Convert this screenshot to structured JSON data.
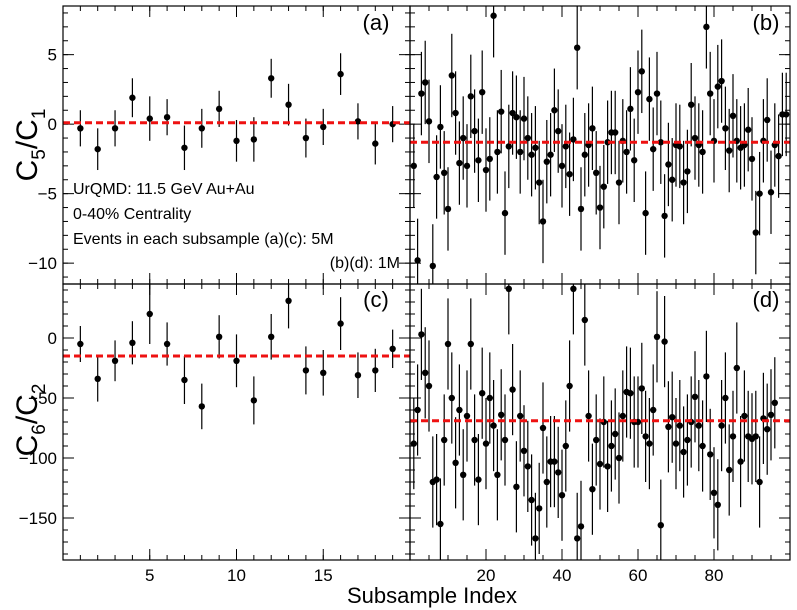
{
  "figure": {
    "x_title": "Subsample Index",
    "y_title_top": {
      "base": "C",
      "num_sub": "5",
      "den_sub": "1"
    },
    "y_title_bottom": {
      "base": "C",
      "num_sub": "6",
      "den_sub": "2"
    },
    "annotations": [
      "UrQMD: 11.5 GeV Au+Au",
      "0-40% Centrality",
      "Events in each subsample (a)(c): 5M",
      "(b)(d): 1M"
    ],
    "colors": {
      "reference_line": "#ee1111",
      "points": "#000000"
    }
  },
  "chart_data": [
    {
      "panel": "(a)",
      "type": "scatter",
      "ylabel": "C5/C1",
      "xlim": [
        0,
        20
      ],
      "ylim": [
        -11.5,
        8.5
      ],
      "x_ticks": [
        5,
        10,
        15
      ],
      "y_ticks": [
        -10,
        -5,
        0,
        5
      ],
      "reference_line": 0.1,
      "points": [
        [
          1,
          -0.3
        ],
        [
          2,
          -1.8
        ],
        [
          3,
          -0.3
        ],
        [
          4,
          1.9
        ],
        [
          5,
          0.4
        ],
        [
          6,
          0.5
        ],
        [
          7,
          -1.7
        ],
        [
          8,
          -0.3
        ],
        [
          9,
          1.1
        ],
        [
          10,
          -1.2
        ],
        [
          11,
          -1.1
        ],
        [
          12,
          3.3
        ],
        [
          13,
          1.4
        ],
        [
          14,
          -1.0
        ],
        [
          15,
          -0.2
        ],
        [
          16,
          3.6
        ],
        [
          17,
          0.2
        ],
        [
          18,
          -1.4
        ],
        [
          19,
          0.0
        ]
      ],
      "errors": [
        1.3,
        1.5,
        1.3,
        1.4,
        1.6,
        1.3,
        1.6,
        1.4,
        1.3,
        1.5,
        1.6,
        1.4,
        1.5,
        1.4,
        1.3,
        1.5,
        1.3,
        1.5,
        1.3
      ]
    },
    {
      "panel": "(b)",
      "type": "scatter",
      "ylabel": "C5/C1",
      "xlim": [
        0,
        100
      ],
      "ylim": [
        -11.5,
        8.5
      ],
      "x_ticks": [
        20,
        40,
        60,
        80
      ],
      "y_ticks": [
        -10,
        -5,
        0,
        5
      ],
      "reference_line": -1.3,
      "points": [
        [
          1,
          -3.0
        ],
        [
          2,
          -9.8
        ],
        [
          3,
          2.2
        ],
        [
          4,
          3.0
        ],
        [
          5,
          0.2
        ],
        [
          6,
          -10.2
        ],
        [
          7,
          -3.8
        ],
        [
          8,
          -0.2
        ],
        [
          9,
          -3.5
        ],
        [
          10,
          -6.1
        ],
        [
          11,
          3.5
        ],
        [
          12,
          0.8
        ],
        [
          13,
          -2.8
        ],
        [
          14,
          -1.0
        ],
        [
          15,
          -3.0
        ],
        [
          16,
          2.0
        ],
        [
          17,
          -0.5
        ],
        [
          18,
          -2.6
        ],
        [
          19,
          2.3
        ],
        [
          20,
          -3.3
        ],
        [
          21,
          -2.5
        ],
        [
          22,
          7.8
        ],
        [
          23,
          -2.0
        ],
        [
          24,
          0.9
        ],
        [
          25,
          -6.4
        ],
        [
          26,
          -1.6
        ],
        [
          27,
          0.8
        ],
        [
          28,
          0.5
        ],
        [
          29,
          -2.0
        ],
        [
          30,
          0.4
        ],
        [
          31,
          -1.0
        ],
        [
          32,
          -2.2
        ],
        [
          33,
          -1.7
        ],
        [
          34,
          -4.2
        ],
        [
          35,
          -7.0
        ],
        [
          36,
          -2.7
        ],
        [
          37,
          -2.2
        ],
        [
          38,
          1.0
        ],
        [
          39,
          -0.5
        ],
        [
          40,
          -3.0
        ],
        [
          41,
          -1.6
        ],
        [
          42,
          -3.6
        ],
        [
          43,
          -1.1
        ],
        [
          44,
          5.5
        ],
        [
          45,
          -6.1
        ],
        [
          46,
          -2.2
        ],
        [
          47,
          -1.5
        ],
        [
          48,
          -0.3
        ],
        [
          49,
          -3.5
        ],
        [
          50,
          -6.0
        ],
        [
          51,
          -4.5
        ],
        [
          52,
          -1.3
        ],
        [
          53,
          -0.6
        ],
        [
          54,
          -0.6
        ],
        [
          55,
          -4.2
        ],
        [
          56,
          -1.2
        ],
        [
          57,
          -2.0
        ],
        [
          58,
          1.1
        ],
        [
          59,
          -2.6
        ],
        [
          60,
          2.3
        ],
        [
          61,
          3.8
        ],
        [
          62,
          -6.4
        ],
        [
          63,
          1.8
        ],
        [
          64,
          -1.8
        ],
        [
          65,
          2.2
        ],
        [
          66,
          -1.3
        ],
        [
          67,
          -6.6
        ],
        [
          68,
          -2.9
        ],
        [
          69,
          -4.0
        ],
        [
          70,
          -1.5
        ],
        [
          71,
          -1.6
        ],
        [
          72,
          -4.2
        ],
        [
          73,
          -3.4
        ],
        [
          74,
          1.4
        ],
        [
          75,
          -1.0
        ],
        [
          76,
          -1.5
        ],
        [
          77,
          -2.0
        ],
        [
          78,
          7.0
        ],
        [
          79,
          2.2
        ],
        [
          80,
          -1.2
        ],
        [
          81,
          2.7
        ],
        [
          82,
          3.1
        ],
        [
          83,
          -0.3
        ],
        [
          84,
          -1.9
        ],
        [
          85,
          0.6
        ],
        [
          86,
          -1.2
        ],
        [
          87,
          -1.7
        ],
        [
          88,
          -1.5
        ],
        [
          89,
          -0.4
        ],
        [
          90,
          -2.5
        ],
        [
          91,
          -7.8
        ],
        [
          92,
          -5.0
        ],
        [
          93,
          -1.2
        ],
        [
          94,
          0.3
        ],
        [
          95,
          -4.9
        ],
        [
          96,
          -1.5
        ],
        [
          97,
          -2.3
        ],
        [
          98,
          0.7
        ],
        [
          99,
          0.7
        ]
      ],
      "error": 3.0
    },
    {
      "panel": "(c)",
      "type": "scatter",
      "ylabel": "C6/C2",
      "xlim": [
        0,
        20
      ],
      "ylim": [
        -185,
        45
      ],
      "x_ticks": [
        5,
        10,
        15
      ],
      "y_ticks": [
        -150,
        -100,
        -50,
        0
      ],
      "reference_line": -15,
      "points": [
        [
          1,
          -5
        ],
        [
          2,
          -34
        ],
        [
          3,
          -19
        ],
        [
          4,
          -4
        ],
        [
          5,
          20
        ],
        [
          6,
          -5
        ],
        [
          7,
          -35
        ],
        [
          8,
          -57
        ],
        [
          9,
          1
        ],
        [
          10,
          -19
        ],
        [
          11,
          -52
        ],
        [
          12,
          1
        ],
        [
          13,
          31
        ],
        [
          14,
          -27
        ],
        [
          15,
          -29
        ],
        [
          16,
          12
        ],
        [
          17,
          -31
        ],
        [
          18,
          -27
        ],
        [
          19,
          -9
        ]
      ],
      "errors": [
        15,
        19,
        17,
        18,
        25,
        18,
        20,
        19,
        18,
        22,
        20,
        19,
        23,
        20,
        19,
        22,
        19,
        18,
        16
      ]
    },
    {
      "panel": "(d)",
      "type": "scatter",
      "ylabel": "C6/C2",
      "xlim": [
        0,
        100
      ],
      "ylim": [
        -185,
        45
      ],
      "x_ticks": [
        20,
        40,
        60,
        80
      ],
      "y_ticks": [
        -150,
        -100,
        -50,
        0
      ],
      "reference_line": -69,
      "points": [
        [
          1,
          -88
        ],
        [
          2,
          -60
        ],
        [
          3,
          3
        ],
        [
          4,
          -29
        ],
        [
          5,
          -40
        ],
        [
          6,
          -120
        ],
        [
          7,
          -118
        ],
        [
          8,
          -155
        ],
        [
          9,
          -85
        ],
        [
          10,
          -5
        ],
        [
          11,
          -50
        ],
        [
          12,
          -104
        ],
        [
          13,
          -60
        ],
        [
          14,
          -114
        ],
        [
          15,
          -65
        ],
        [
          16,
          -5
        ],
        [
          17,
          -85
        ],
        [
          18,
          -118
        ],
        [
          19,
          -46
        ],
        [
          20,
          -88
        ],
        [
          21,
          -50
        ],
        [
          22,
          -73
        ],
        [
          23,
          -114
        ],
        [
          24,
          -64
        ],
        [
          25,
          -85
        ],
        [
          26,
          41
        ],
        [
          27,
          -43
        ],
        [
          28,
          -124
        ],
        [
          29,
          -65
        ],
        [
          30,
          -94
        ],
        [
          31,
          -107
        ],
        [
          32,
          -135
        ],
        [
          33,
          -167
        ],
        [
          34,
          -142
        ],
        [
          35,
          -75
        ],
        [
          36,
          -120
        ],
        [
          37,
          -103
        ],
        [
          38,
          -103
        ],
        [
          39,
          -112
        ],
        [
          40,
          -131
        ],
        [
          41,
          -90
        ],
        [
          42,
          -40
        ],
        [
          43,
          41
        ],
        [
          44,
          -167
        ],
        [
          45,
          -157
        ],
        [
          46,
          15
        ],
        [
          47,
          -65
        ],
        [
          48,
          -126
        ],
        [
          49,
          -85
        ],
        [
          50,
          -105
        ],
        [
          51,
          -70
        ],
        [
          52,
          -107
        ],
        [
          53,
          -90
        ],
        [
          54,
          -80
        ],
        [
          55,
          -100
        ],
        [
          56,
          -65
        ],
        [
          57,
          -45
        ],
        [
          58,
          -46
        ],
        [
          59,
          -70
        ],
        [
          60,
          -70
        ],
        [
          61,
          -42
        ],
        [
          62,
          -82
        ],
        [
          63,
          -88
        ],
        [
          64,
          -60
        ],
        [
          65,
          1
        ],
        [
          66,
          -156
        ],
        [
          67,
          -3
        ],
        [
          68,
          -74
        ],
        [
          69,
          -66
        ],
        [
          70,
          -88
        ],
        [
          71,
          -73
        ],
        [
          72,
          -95
        ],
        [
          73,
          -85
        ],
        [
          74,
          -70
        ],
        [
          75,
          -49
        ],
        [
          76,
          -73
        ],
        [
          77,
          -90
        ],
        [
          78,
          -32
        ],
        [
          79,
          -97
        ],
        [
          80,
          -129
        ],
        [
          81,
          -139
        ],
        [
          82,
          -73
        ],
        [
          83,
          -50
        ],
        [
          84,
          -110
        ],
        [
          85,
          -82
        ],
        [
          86,
          -25
        ],
        [
          87,
          -103
        ],
        [
          88,
          -65
        ],
        [
          89,
          -82
        ],
        [
          90,
          -84
        ],
        [
          91,
          -82
        ],
        [
          92,
          -120
        ],
        [
          93,
          -67
        ],
        [
          94,
          -76
        ],
        [
          95,
          -64
        ],
        [
          96,
          -54
        ]
      ],
      "error": 38
    }
  ]
}
